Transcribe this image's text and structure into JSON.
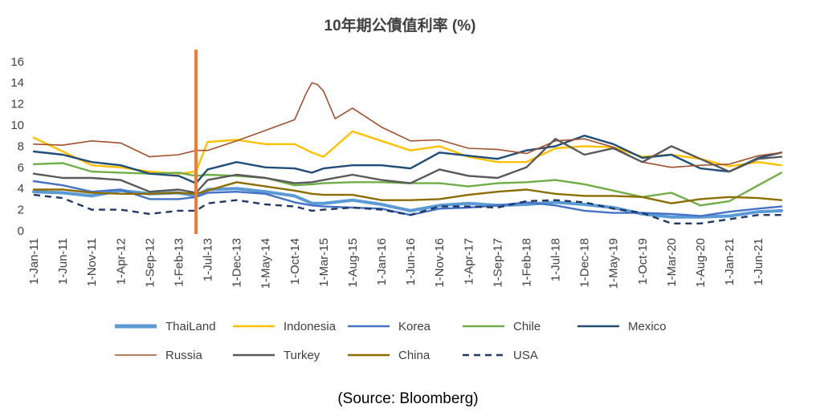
{
  "source_note": "(Source: Bloomberg)",
  "chart_data": {
    "type": "line",
    "title": "10年期公債值利率 (%)",
    "xlabel": "",
    "ylabel": "",
    "ylim": [
      0,
      17
    ],
    "yticks": [
      0,
      2,
      4,
      6,
      8,
      10,
      12,
      14,
      16
    ],
    "grid": false,
    "legend_position": "bottom",
    "x_tick_labels": [
      "1-Jan-11",
      "1-Jun-11",
      "1-Nov-11",
      "1-Apr-12",
      "1-Sep-12",
      "1-Feb-13",
      "1-Jul-13",
      "1-Dec-13",
      "1-May-14",
      "1-Oct-14",
      "1-Mar-15",
      "1-Aug-15",
      "1-Jan-16",
      "1-Jun-16",
      "1-Nov-16",
      "1-Apr-17",
      "1-Sep-17",
      "1-Feb-18",
      "1-Jul-18",
      "1-Dec-18",
      "1-May-19",
      "1-Oct-19",
      "1-Mar-20",
      "1-Aug-20",
      "1-Jan-21",
      "1-Jun-21"
    ],
    "x_start": "2011-01",
    "x_end": "2021-10",
    "annotation": {
      "type": "vertical-line",
      "date": "2013-05",
      "color": "#ED7D31"
    },
    "series": [
      {
        "name": "ThaiLand",
        "color": "#5B9BD5",
        "style": "thick",
        "points": [
          [
            "2011-01",
            3.7
          ],
          [
            "2011-06",
            3.6
          ],
          [
            "2011-11",
            3.3
          ],
          [
            "2012-04",
            3.8
          ],
          [
            "2012-09",
            3.5
          ],
          [
            "2013-02",
            3.6
          ],
          [
            "2013-05",
            3.3
          ],
          [
            "2013-07",
            3.9
          ],
          [
            "2013-12",
            4.0
          ],
          [
            "2014-05",
            3.7
          ],
          [
            "2014-10",
            3.3
          ],
          [
            "2015-01",
            2.6
          ],
          [
            "2015-03",
            2.6
          ],
          [
            "2015-08",
            2.9
          ],
          [
            "2016-01",
            2.5
          ],
          [
            "2016-06",
            1.9
          ],
          [
            "2016-11",
            2.4
          ],
          [
            "2017-04",
            2.6
          ],
          [
            "2017-09",
            2.4
          ],
          [
            "2018-02",
            2.5
          ],
          [
            "2018-07",
            2.7
          ],
          [
            "2018-12",
            2.5
          ],
          [
            "2019-05",
            2.2
          ],
          [
            "2019-10",
            1.6
          ],
          [
            "2020-03",
            1.3
          ],
          [
            "2020-08",
            1.3
          ],
          [
            "2021-01",
            1.4
          ],
          [
            "2021-06",
            1.8
          ],
          [
            "2021-10",
            1.9
          ]
        ]
      },
      {
        "name": "Indonesia",
        "color": "#FFC000",
        "style": "solid",
        "points": [
          [
            "2011-01",
            8.8
          ],
          [
            "2011-06",
            7.5
          ],
          [
            "2011-11",
            6.2
          ],
          [
            "2012-04",
            6.0
          ],
          [
            "2012-09",
            5.6
          ],
          [
            "2013-02",
            5.4
          ],
          [
            "2013-05",
            5.6
          ],
          [
            "2013-07",
            8.4
          ],
          [
            "2013-12",
            8.6
          ],
          [
            "2014-05",
            8.2
          ],
          [
            "2014-10",
            8.2
          ],
          [
            "2015-01",
            7.4
          ],
          [
            "2015-03",
            7.0
          ],
          [
            "2015-08",
            9.4
          ],
          [
            "2016-01",
            8.5
          ],
          [
            "2016-06",
            7.6
          ],
          [
            "2016-11",
            8.0
          ],
          [
            "2017-04",
            7.0
          ],
          [
            "2017-09",
            6.5
          ],
          [
            "2018-02",
            6.5
          ],
          [
            "2018-07",
            7.8
          ],
          [
            "2018-12",
            8.0
          ],
          [
            "2019-05",
            7.9
          ],
          [
            "2019-10",
            7.0
          ],
          [
            "2020-03",
            7.2
          ],
          [
            "2020-08",
            6.8
          ],
          [
            "2021-01",
            6.1
          ],
          [
            "2021-06",
            6.5
          ],
          [
            "2021-10",
            6.2
          ]
        ]
      },
      {
        "name": "Korea",
        "color": "#4472C4",
        "style": "solid",
        "points": [
          [
            "2011-01",
            4.7
          ],
          [
            "2011-06",
            4.3
          ],
          [
            "2011-11",
            3.7
          ],
          [
            "2012-04",
            3.9
          ],
          [
            "2012-09",
            3.0
          ],
          [
            "2013-02",
            3.0
          ],
          [
            "2013-05",
            3.2
          ],
          [
            "2013-07",
            3.6
          ],
          [
            "2013-12",
            3.7
          ],
          [
            "2014-05",
            3.5
          ],
          [
            "2014-10",
            2.7
          ],
          [
            "2015-01",
            2.4
          ],
          [
            "2015-03",
            2.3
          ],
          [
            "2015-08",
            2.2
          ],
          [
            "2016-01",
            2.1
          ],
          [
            "2016-06",
            1.5
          ],
          [
            "2016-11",
            2.1
          ],
          [
            "2017-04",
            2.2
          ],
          [
            "2017-09",
            2.4
          ],
          [
            "2018-02",
            2.7
          ],
          [
            "2018-07",
            2.4
          ],
          [
            "2018-12",
            1.9
          ],
          [
            "2019-05",
            1.7
          ],
          [
            "2019-10",
            1.7
          ],
          [
            "2020-03",
            1.6
          ],
          [
            "2020-08",
            1.4
          ],
          [
            "2021-01",
            1.8
          ],
          [
            "2021-06",
            2.1
          ],
          [
            "2021-10",
            2.3
          ]
        ]
      },
      {
        "name": "Chile",
        "color": "#70AD47",
        "style": "solid",
        "points": [
          [
            "2011-01",
            6.3
          ],
          [
            "2011-06",
            6.4
          ],
          [
            "2011-11",
            5.6
          ],
          [
            "2012-04",
            5.5
          ],
          [
            "2012-09",
            5.4
          ],
          [
            "2013-02",
            5.5
          ],
          [
            "2013-05",
            5.2
          ],
          [
            "2013-07",
            5.3
          ],
          [
            "2013-12",
            5.2
          ],
          [
            "2014-05",
            5.0
          ],
          [
            "2014-10",
            4.3
          ],
          [
            "2015-01",
            4.4
          ],
          [
            "2015-03",
            4.5
          ],
          [
            "2015-08",
            4.6
          ],
          [
            "2016-01",
            4.6
          ],
          [
            "2016-06",
            4.5
          ],
          [
            "2016-11",
            4.5
          ],
          [
            "2017-04",
            4.2
          ],
          [
            "2017-09",
            4.5
          ],
          [
            "2018-02",
            4.6
          ],
          [
            "2018-07",
            4.8
          ],
          [
            "2018-12",
            4.4
          ],
          [
            "2019-05",
            3.8
          ],
          [
            "2019-10",
            3.2
          ],
          [
            "2020-03",
            3.6
          ],
          [
            "2020-08",
            2.4
          ],
          [
            "2021-01",
            2.8
          ],
          [
            "2021-06",
            4.3
          ],
          [
            "2021-10",
            5.5
          ]
        ]
      },
      {
        "name": "Mexico",
        "color": "#1F4E79",
        "style": "solid",
        "points": [
          [
            "2011-01",
            7.5
          ],
          [
            "2011-06",
            7.2
          ],
          [
            "2011-11",
            6.5
          ],
          [
            "2012-04",
            6.2
          ],
          [
            "2012-09",
            5.4
          ],
          [
            "2013-02",
            5.2
          ],
          [
            "2013-05",
            4.5
          ],
          [
            "2013-07",
            5.8
          ],
          [
            "2013-12",
            6.5
          ],
          [
            "2014-05",
            6.0
          ],
          [
            "2014-10",
            5.9
          ],
          [
            "2015-01",
            5.5
          ],
          [
            "2015-03",
            5.9
          ],
          [
            "2015-08",
            6.2
          ],
          [
            "2016-01",
            6.2
          ],
          [
            "2016-06",
            5.9
          ],
          [
            "2016-11",
            7.4
          ],
          [
            "2017-04",
            7.1
          ],
          [
            "2017-09",
            6.8
          ],
          [
            "2018-02",
            7.6
          ],
          [
            "2018-07",
            8.0
          ],
          [
            "2018-12",
            9.0
          ],
          [
            "2019-05",
            8.2
          ],
          [
            "2019-10",
            6.9
          ],
          [
            "2020-03",
            7.2
          ],
          [
            "2020-08",
            5.9
          ],
          [
            "2021-01",
            5.6
          ],
          [
            "2021-06",
            6.9
          ],
          [
            "2021-10",
            7.4
          ]
        ]
      },
      {
        "name": "Russia",
        "color": "#A0522D",
        "style": "thin",
        "points": [
          [
            "2011-01",
            8.2
          ],
          [
            "2011-06",
            8.1
          ],
          [
            "2011-11",
            8.5
          ],
          [
            "2012-04",
            8.3
          ],
          [
            "2012-09",
            7.0
          ],
          [
            "2013-02",
            7.2
          ],
          [
            "2013-05",
            7.6
          ],
          [
            "2013-07",
            7.6
          ],
          [
            "2013-12",
            8.5
          ],
          [
            "2014-05",
            9.5
          ],
          [
            "2014-10",
            10.5
          ],
          [
            "2014-12",
            13.0
          ],
          [
            "2015-01",
            14.0
          ],
          [
            "2015-02",
            13.8
          ],
          [
            "2015-03",
            13.2
          ],
          [
            "2015-05",
            10.6
          ],
          [
            "2015-08",
            11.6
          ],
          [
            "2016-01",
            9.8
          ],
          [
            "2016-06",
            8.5
          ],
          [
            "2016-11",
            8.6
          ],
          [
            "2017-04",
            7.8
          ],
          [
            "2017-09",
            7.7
          ],
          [
            "2018-02",
            7.3
          ],
          [
            "2018-07",
            8.5
          ],
          [
            "2018-12",
            8.7
          ],
          [
            "2019-05",
            7.9
          ],
          [
            "2019-10",
            6.5
          ],
          [
            "2020-03",
            6.0
          ],
          [
            "2020-08",
            6.2
          ],
          [
            "2021-01",
            6.3
          ],
          [
            "2021-06",
            7.1
          ],
          [
            "2021-10",
            7.4
          ]
        ]
      },
      {
        "name": "Turkey",
        "color": "#595959",
        "style": "solid",
        "points": [
          [
            "2011-01",
            5.4
          ],
          [
            "2011-06",
            5.0
          ],
          [
            "2011-11",
            5.0
          ],
          [
            "2012-04",
            4.8
          ],
          [
            "2012-09",
            3.7
          ],
          [
            "2013-02",
            3.9
          ],
          [
            "2013-05",
            3.6
          ],
          [
            "2013-07",
            4.8
          ],
          [
            "2013-12",
            5.3
          ],
          [
            "2014-05",
            5.0
          ],
          [
            "2014-10",
            4.5
          ],
          [
            "2015-01",
            4.6
          ],
          [
            "2015-03",
            4.8
          ],
          [
            "2015-08",
            5.3
          ],
          [
            "2016-01",
            4.8
          ],
          [
            "2016-06",
            4.5
          ],
          [
            "2016-11",
            5.8
          ],
          [
            "2017-04",
            5.2
          ],
          [
            "2017-09",
            5.0
          ],
          [
            "2018-02",
            6.0
          ],
          [
            "2018-07",
            8.7
          ],
          [
            "2018-12",
            7.2
          ],
          [
            "2019-05",
            7.8
          ],
          [
            "2019-10",
            6.5
          ],
          [
            "2020-03",
            8.0
          ],
          [
            "2020-08",
            6.8
          ],
          [
            "2021-01",
            5.6
          ],
          [
            "2021-06",
            6.8
          ],
          [
            "2021-10",
            7.0
          ]
        ]
      },
      {
        "name": "China",
        "color": "#8C6D00",
        "style": "solid",
        "points": [
          [
            "2011-01",
            3.9
          ],
          [
            "2011-06",
            3.9
          ],
          [
            "2011-11",
            3.6
          ],
          [
            "2012-04",
            3.5
          ],
          [
            "2012-09",
            3.5
          ],
          [
            "2013-02",
            3.6
          ],
          [
            "2013-05",
            3.5
          ],
          [
            "2013-07",
            3.8
          ],
          [
            "2013-12",
            4.6
          ],
          [
            "2014-05",
            4.2
          ],
          [
            "2014-10",
            3.8
          ],
          [
            "2015-01",
            3.5
          ],
          [
            "2015-03",
            3.4
          ],
          [
            "2015-08",
            3.4
          ],
          [
            "2016-01",
            2.9
          ],
          [
            "2016-06",
            2.9
          ],
          [
            "2016-11",
            3.0
          ],
          [
            "2017-04",
            3.4
          ],
          [
            "2017-09",
            3.7
          ],
          [
            "2018-02",
            3.9
          ],
          [
            "2018-07",
            3.5
          ],
          [
            "2018-12",
            3.3
          ],
          [
            "2019-05",
            3.3
          ],
          [
            "2019-10",
            3.2
          ],
          [
            "2020-03",
            2.6
          ],
          [
            "2020-08",
            3.0
          ],
          [
            "2021-01",
            3.2
          ],
          [
            "2021-06",
            3.1
          ],
          [
            "2021-10",
            2.9
          ]
        ]
      },
      {
        "name": "USA",
        "color": "#203864",
        "style": "dashed",
        "points": [
          [
            "2011-01",
            3.4
          ],
          [
            "2011-06",
            3.1
          ],
          [
            "2011-11",
            2.0
          ],
          [
            "2012-04",
            2.0
          ],
          [
            "2012-09",
            1.6
          ],
          [
            "2013-02",
            1.9
          ],
          [
            "2013-05",
            1.9
          ],
          [
            "2013-07",
            2.6
          ],
          [
            "2013-12",
            2.9
          ],
          [
            "2014-05",
            2.5
          ],
          [
            "2014-10",
            2.3
          ],
          [
            "2015-01",
            1.9
          ],
          [
            "2015-03",
            2.0
          ],
          [
            "2015-08",
            2.2
          ],
          [
            "2016-01",
            2.0
          ],
          [
            "2016-06",
            1.5
          ],
          [
            "2016-11",
            2.3
          ],
          [
            "2017-04",
            2.3
          ],
          [
            "2017-09",
            2.2
          ],
          [
            "2018-02",
            2.8
          ],
          [
            "2018-07",
            2.9
          ],
          [
            "2018-12",
            2.7
          ],
          [
            "2019-05",
            2.1
          ],
          [
            "2019-10",
            1.7
          ],
          [
            "2020-03",
            0.7
          ],
          [
            "2020-08",
            0.7
          ],
          [
            "2021-01",
            1.1
          ],
          [
            "2021-06",
            1.5
          ],
          [
            "2021-10",
            1.5
          ]
        ]
      }
    ]
  }
}
